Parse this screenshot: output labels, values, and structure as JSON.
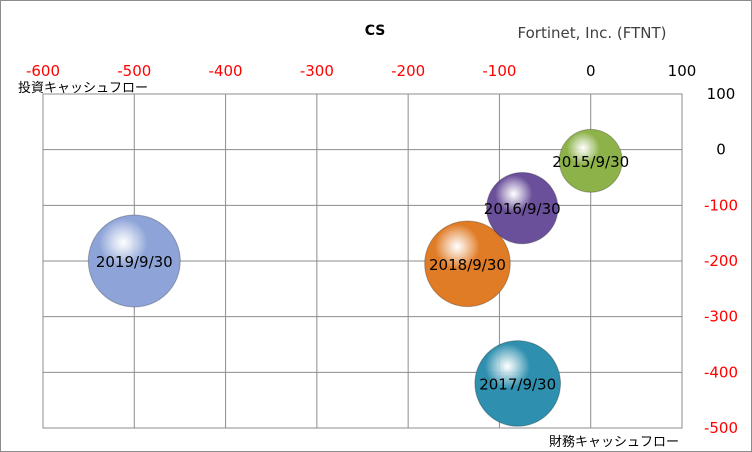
{
  "chart_data": {
    "type": "bubble",
    "title": "CS",
    "subtitle": "Fortinet, Inc. (FTNT)",
    "xlabel": "財務キャッシュフロー",
    "ylabel": "投資キャッシュフロー",
    "xlim": [
      -600,
      100
    ],
    "ylim": [
      -500,
      100
    ],
    "x_ticks": [
      -600,
      -500,
      -400,
      -300,
      -200,
      -100,
      0,
      100
    ],
    "y_ticks": [
      100,
      0,
      -100,
      -200,
      -300,
      -400,
      -500
    ],
    "grid": true,
    "negative_tick_color": "#ff0000",
    "positive_tick_color": "#000000",
    "points": [
      {
        "label": "2015/9/30",
        "x": 0,
        "y": -20,
        "size": 0.7,
        "color": "#8db24a"
      },
      {
        "label": "2016/9/30",
        "x": -75,
        "y": -105,
        "size": 0.9,
        "color": "#6a4f9a"
      },
      {
        "label": "2017/9/30",
        "x": -80,
        "y": -420,
        "size": 1.3,
        "color": "#2e8fae"
      },
      {
        "label": "2018/9/30",
        "x": -135,
        "y": -205,
        "size": 1.3,
        "color": "#e07b26"
      },
      {
        "label": "2019/9/30",
        "x": -500,
        "y": -200,
        "size": 1.5,
        "color": "#8ea4d8"
      }
    ]
  }
}
